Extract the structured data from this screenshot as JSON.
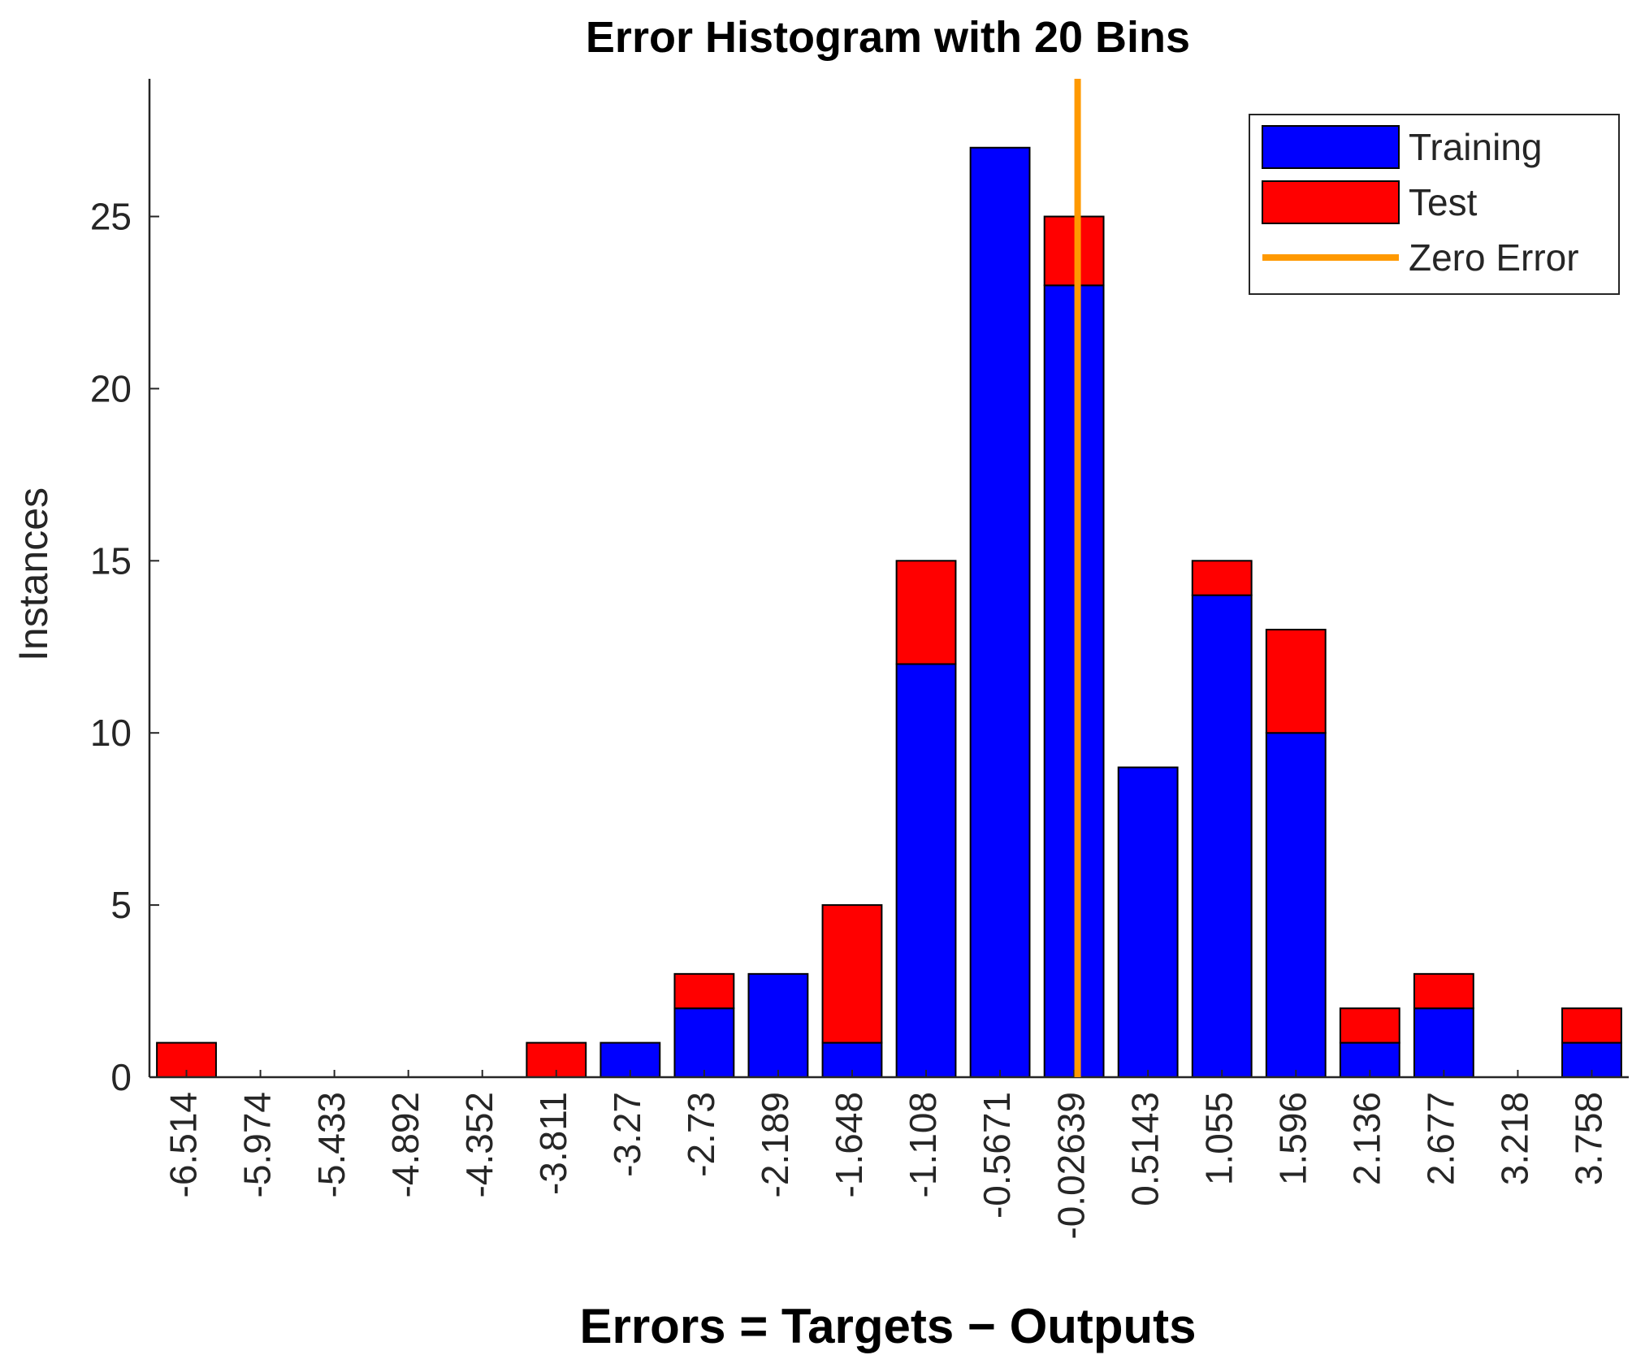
{
  "chart_data": {
    "type": "bar",
    "stacked": true,
    "title": "Error Histogram with 20 Bins",
    "xlabel": "Errors = Targets − Outputs",
    "ylabel": "Instances",
    "ylim": [
      0,
      29
    ],
    "yticks": [
      0,
      5,
      10,
      15,
      20,
      25
    ],
    "categories": [
      "-6.514",
      "-5.974",
      "-5.433",
      "-4.892",
      "-4.352",
      "-3.811",
      "-3.27",
      "-2.73",
      "-2.189",
      "-1.648",
      "-1.108",
      "-0.5671",
      "-0.02639",
      "0.5143",
      "1.055",
      "1.596",
      "2.136",
      "2.677",
      "3.218",
      "3.758"
    ],
    "series": [
      {
        "name": "Training",
        "color": "#0000ff",
        "values": [
          0,
          0,
          0,
          0,
          0,
          0,
          1,
          2,
          3,
          1,
          12,
          27,
          23,
          9,
          14,
          10,
          1,
          2,
          0,
          1
        ]
      },
      {
        "name": "Test",
        "color": "#ff0000",
        "values": [
          1,
          0,
          0,
          0,
          0,
          1,
          0,
          1,
          0,
          4,
          3,
          0,
          2,
          0,
          1,
          3,
          1,
          1,
          0,
          1
        ]
      }
    ],
    "reference_line": {
      "name": "Zero Error",
      "x": 0,
      "color": "#ff9900"
    },
    "grid": false,
    "legend": "top-right"
  }
}
